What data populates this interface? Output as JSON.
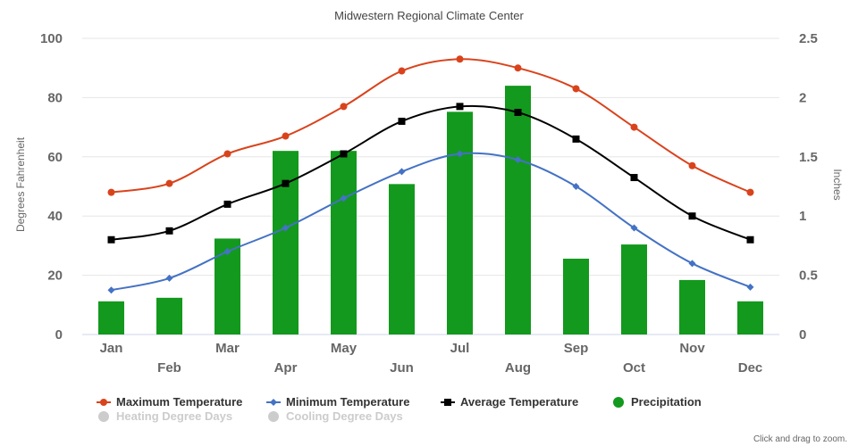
{
  "chart_data": {
    "type": "bar+line",
    "title": "Midwestern Regional Climate Center",
    "categories": [
      "Jan",
      "Feb",
      "Mar",
      "Apr",
      "May",
      "Jun",
      "Jul",
      "Aug",
      "Sep",
      "Oct",
      "Nov",
      "Dec"
    ],
    "y_left": {
      "label": "Degrees Fahrenheit",
      "min": 0,
      "max": 100,
      "ticks": [
        "0",
        "20",
        "40",
        "60",
        "80",
        "100"
      ]
    },
    "y_right": {
      "label": "Inches",
      "min": 0,
      "max": 2.5,
      "ticks": [
        "0",
        "0.5",
        "1",
        "1.5",
        "2",
        "2.5"
      ]
    },
    "grid": true,
    "legend_position": "bottom",
    "series": [
      {
        "name": "Maximum Temperature",
        "type": "line",
        "axis": "left",
        "color": "#d9431c",
        "marker": "circle",
        "values": [
          48,
          51,
          61,
          67,
          77,
          89,
          93,
          90,
          83,
          70,
          57,
          48
        ]
      },
      {
        "name": "Minimum Temperature",
        "type": "line",
        "axis": "left",
        "color": "#4472c4",
        "marker": "diamond",
        "values": [
          15,
          19,
          28,
          36,
          46,
          55,
          61,
          59,
          50,
          36,
          24,
          16
        ]
      },
      {
        "name": "Average Temperature",
        "type": "line",
        "axis": "left",
        "color": "#000000",
        "marker": "square",
        "values": [
          32,
          35,
          44,
          51,
          61,
          72,
          77,
          75,
          66,
          53,
          40,
          32
        ]
      },
      {
        "name": "Precipitation",
        "type": "bar",
        "axis": "right",
        "color": "#13991d",
        "marker": "circle",
        "values": [
          0.28,
          0.31,
          0.81,
          1.55,
          1.55,
          1.27,
          1.88,
          2.1,
          0.64,
          0.76,
          0.46,
          0.28
        ]
      }
    ],
    "hidden_series": [
      {
        "name": "Heating Degree Days",
        "color": "#cccccc"
      },
      {
        "name": "Cooling Degree Days",
        "color": "#cccccc"
      }
    ]
  },
  "credit": "Click and drag to zoom."
}
